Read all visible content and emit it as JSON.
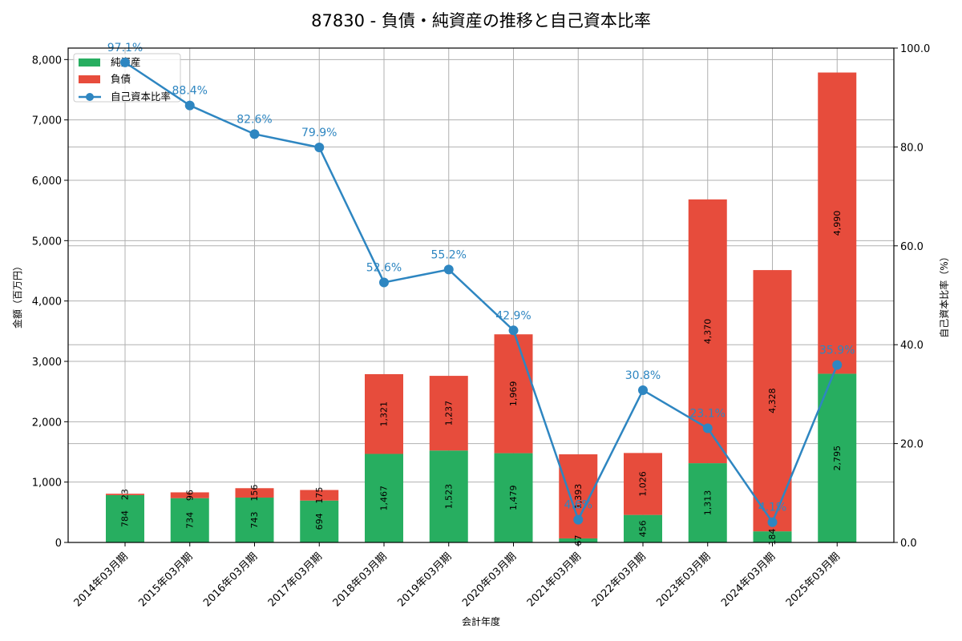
{
  "chart_data": {
    "type": "bar",
    "title": "87830 - 負債・純資産の推移と自己資本比率",
    "xlabel": "会計年度",
    "ylabel": "金額（百万円）",
    "y2label": "自己資本比率（%）",
    "ylim": [
      0,
      8190
    ],
    "y2lim": [
      0,
      100
    ],
    "yticks": [
      "0",
      "1,000",
      "2,000",
      "3,000",
      "4,000",
      "5,000",
      "6,000",
      "7,000",
      "8,000"
    ],
    "y2ticks": [
      "0.0",
      "20.0",
      "40.0",
      "60.0",
      "80.0",
      "100.0"
    ],
    "grid": true,
    "legend_position": "upper left",
    "categories": [
      "2014年03月期",
      "2015年03月期",
      "2016年03月期",
      "2017年03月期",
      "2018年03月期",
      "2019年03月期",
      "2020年03月期",
      "2021年03月期",
      "2022年03月期",
      "2023年03月期",
      "2024年03月期",
      "2025年03月期"
    ],
    "series": [
      {
        "name": "純資産",
        "type": "bar",
        "stacked": true,
        "color": "#27ae60",
        "values": [
          784,
          734,
          743,
          694,
          1467,
          1523,
          1479,
          67,
          456,
          1313,
          184,
          2795
        ],
        "labels": [
          "784",
          "734",
          "743",
          "694",
          "1,467",
          "1,523",
          "1,479",
          "67",
          "456",
          "1,313",
          "184",
          "2,795"
        ]
      },
      {
        "name": "負債",
        "type": "bar",
        "stacked": true,
        "color": "#e74c3c",
        "values": [
          23,
          96,
          156,
          175,
          1321,
          1237,
          1969,
          1393,
          1026,
          4370,
          4328,
          4990
        ],
        "labels": [
          "23",
          "96",
          "156",
          "175",
          "1,321",
          "1,237",
          "1,969",
          "1,393",
          "1,026",
          "4,370",
          "4,328",
          "4,990"
        ]
      },
      {
        "name": "自己資本比率",
        "type": "line",
        "axis": "right",
        "color": "#2e86c1",
        "values": [
          97.1,
          88.4,
          82.6,
          79.9,
          52.6,
          55.2,
          42.9,
          4.6,
          30.8,
          23.1,
          4.1,
          35.9
        ],
        "labels": [
          "97.1%",
          "88.4%",
          "82.6%",
          "79.9%",
          "52.6%",
          "55.2%",
          "42.9%",
          "4.6%",
          "30.8%",
          "23.1%",
          "4.1%",
          "35.9%"
        ]
      }
    ]
  }
}
